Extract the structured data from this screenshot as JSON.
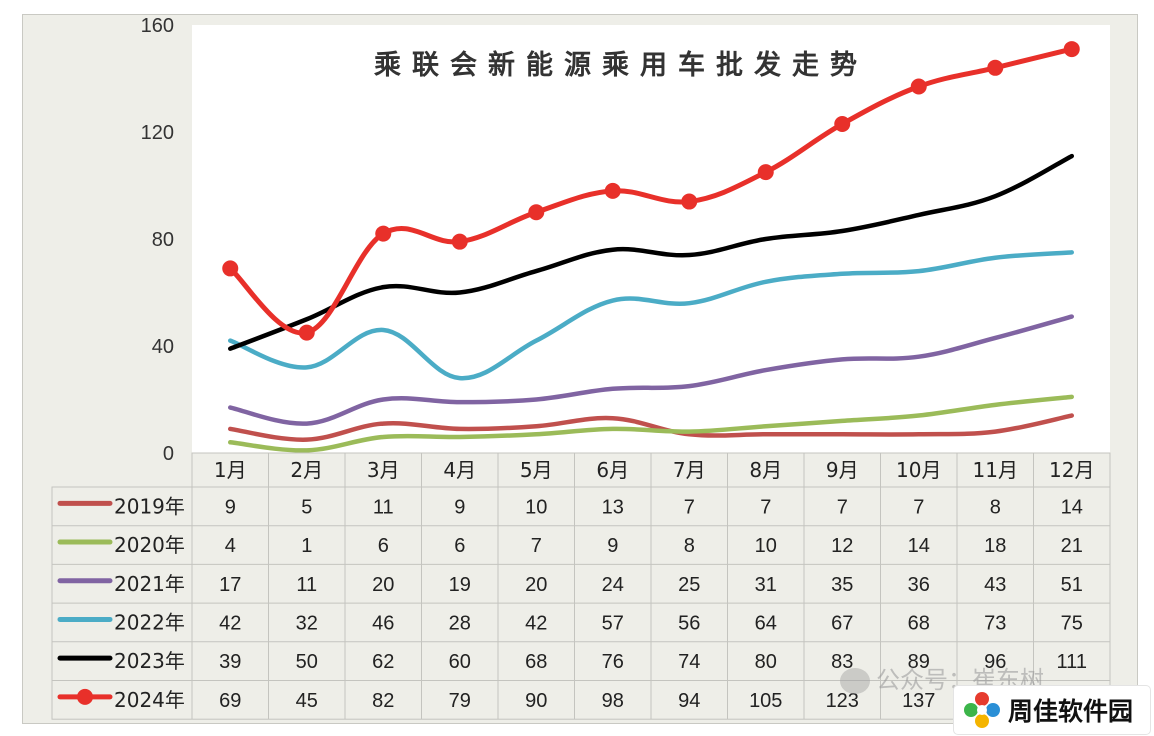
{
  "chart_data": {
    "type": "line",
    "title": "乘联会新能源乘用车批发走势",
    "categories": [
      "1月",
      "2月",
      "3月",
      "4月",
      "5月",
      "6月",
      "7月",
      "8月",
      "9月",
      "10月",
      "11月",
      "12月"
    ],
    "ylim": [
      0,
      160
    ],
    "yticks": [
      "0",
      "40",
      "80",
      "120",
      "160"
    ],
    "grid": false,
    "legend": "table-left",
    "series": [
      {
        "name": "2019年",
        "color": "#c0504d",
        "values": [
          9,
          5,
          11,
          9,
          10,
          13,
          7,
          7,
          7,
          7,
          8,
          14
        ],
        "markers": false
      },
      {
        "name": "2020年",
        "color": "#9bbb59",
        "values": [
          4,
          1,
          6,
          6,
          7,
          9,
          8,
          10,
          12,
          14,
          18,
          21
        ],
        "markers": false
      },
      {
        "name": "2021年",
        "color": "#8064a2",
        "values": [
          17,
          11,
          20,
          19,
          20,
          24,
          25,
          31,
          35,
          36,
          43,
          51
        ],
        "markers": false
      },
      {
        "name": "2022年",
        "color": "#4bacc6",
        "values": [
          42,
          32,
          46,
          28,
          42,
          57,
          56,
          64,
          67,
          68,
          73,
          75
        ],
        "markers": false
      },
      {
        "name": "2023年",
        "color": "#000000",
        "values": [
          39,
          50,
          62,
          60,
          68,
          76,
          74,
          80,
          83,
          89,
          96,
          111
        ],
        "markers": false
      },
      {
        "name": "2024年",
        "color": "#e8302a",
        "values": [
          69,
          45,
          82,
          79,
          90,
          98,
          94,
          105,
          123,
          137,
          144,
          151
        ],
        "markers": true
      }
    ],
    "table_values": [
      [
        "9",
        "5",
        "11",
        "9",
        "10",
        "13",
        "7",
        "7",
        "7",
        "7",
        "8",
        "14"
      ],
      [
        "4",
        "1",
        "6",
        "6",
        "7",
        "9",
        "8",
        "10",
        "12",
        "14",
        "18",
        "21"
      ],
      [
        "17",
        "11",
        "20",
        "19",
        "20",
        "24",
        "25",
        "31",
        "35",
        "36",
        "43",
        "51"
      ],
      [
        "42",
        "32",
        "46",
        "28",
        "42",
        "57",
        "56",
        "64",
        "67",
        "68",
        "73",
        "75"
      ],
      [
        "39",
        "50",
        "62",
        "60",
        "68",
        "76",
        "74",
        "80",
        "83",
        "89",
        "96",
        "111"
      ],
      [
        "69",
        "45",
        "82",
        "79",
        "90",
        "98",
        "94",
        "105",
        "123",
        "137",
        "",
        ""
      ]
    ]
  },
  "watermark": {
    "text": "公众号：崔东树",
    "icon": "wechat-icon"
  },
  "logo": {
    "text": "周佳软件园",
    "icon": "pinwheel-logo-icon"
  }
}
